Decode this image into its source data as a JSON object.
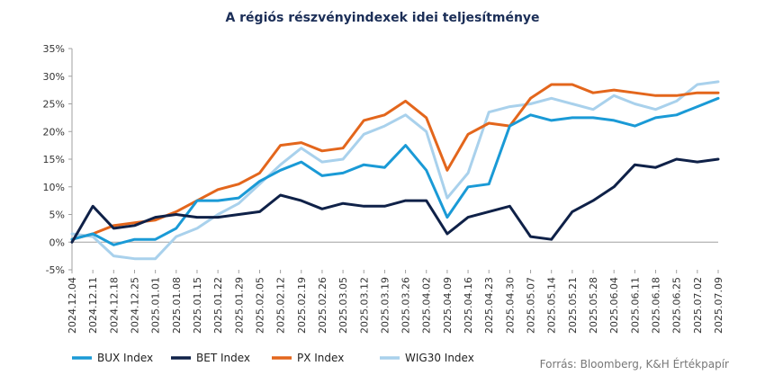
{
  "chart_data": {
    "type": "line",
    "title": "A régiós részvényindexek  idei teljesítménye",
    "source": "Forrás: Bloomberg, K&H Értékpapír",
    "y_ticks": [
      "35%",
      "30%",
      "25%",
      "20%",
      "15%",
      "10%",
      "5%",
      "0%",
      "-5%"
    ],
    "ylim": [
      -5,
      35
    ],
    "y_unit": "%",
    "grid": false,
    "legend_position": "bottom",
    "x": [
      "2024.12.04",
      "2024.12.11",
      "2024.12.18",
      "2024.12.25",
      "2025.01.01",
      "2025.01.08",
      "2025.01.15",
      "2025.01.22",
      "2025.01.29",
      "2025.02.05",
      "2025.02.12",
      "2025.02.19",
      "2025.02.26",
      "2025.03.05",
      "2025.03.12",
      "2025.03.19",
      "2025.03.26",
      "2025.04.02",
      "2025.04.09",
      "2025.04.16",
      "2025.04.23",
      "2025.04.30",
      "2025.05.07",
      "2025.05.14",
      "2025.05.21",
      "2025.05.28",
      "2025.06.04",
      "2025.06.11",
      "2025.06.18",
      "2025.06.25",
      "2025.07.02",
      "2025.07.09"
    ],
    "series": [
      {
        "name": "BUX Index",
        "color": "#1a9ad6",
        "values": [
          0.5,
          1.5,
          -0.5,
          0.5,
          0.5,
          2.5,
          7.5,
          7.5,
          8.0,
          11.0,
          13.0,
          14.5,
          12.0,
          12.5,
          14.0,
          13.5,
          17.5,
          13.0,
          4.5,
          10.0,
          10.5,
          21.0,
          23.0,
          22.0,
          22.5,
          22.5,
          22.0,
          21.0,
          22.5,
          23.0,
          24.5,
          26.0
        ]
      },
      {
        "name": "BET Index",
        "color": "#0f2148",
        "values": [
          0.0,
          6.5,
          2.5,
          3.0,
          4.5,
          5.0,
          4.5,
          4.5,
          5.0,
          5.5,
          8.5,
          7.5,
          6.0,
          7.0,
          6.5,
          6.5,
          7.5,
          7.5,
          1.5,
          4.5,
          5.5,
          6.5,
          1.0,
          0.5,
          5.5,
          7.5,
          10.0,
          14.0,
          13.5,
          15.0,
          14.5,
          15.0
        ]
      },
      {
        "name": "PX Index",
        "color": "#e3661c",
        "values": [
          0.5,
          1.5,
          3.0,
          3.5,
          4.0,
          5.5,
          7.5,
          9.5,
          10.5,
          12.5,
          17.5,
          18.0,
          16.5,
          17.0,
          22.0,
          23.0,
          25.5,
          22.5,
          13.0,
          19.5,
          21.5,
          21.0,
          26.0,
          28.5,
          28.5,
          27.0,
          27.5,
          27.0,
          26.5,
          26.5,
          27.0,
          27.0
        ]
      },
      {
        "name": "WIG30 Index",
        "color": "#a9d1ec",
        "values": [
          1.5,
          1.0,
          -2.5,
          -3.0,
          -3.0,
          1.0,
          2.5,
          5.0,
          7.0,
          10.5,
          14.0,
          17.0,
          14.5,
          15.0,
          19.5,
          21.0,
          23.0,
          20.0,
          8.0,
          12.5,
          23.5,
          24.5,
          25.0,
          26.0,
          25.0,
          24.0,
          26.5,
          25.0,
          24.0,
          25.5,
          28.5,
          29.0
        ]
      }
    ]
  }
}
